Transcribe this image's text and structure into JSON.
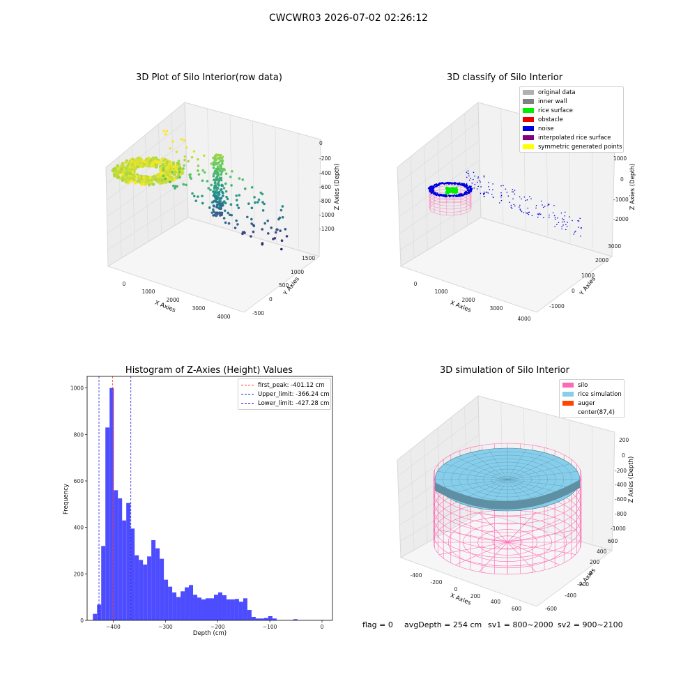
{
  "suptitle": "CWCWR03 2026-07-02 02:26:12",
  "status": {
    "flag": "flag = 0",
    "avg_depth": "avgDepth = 254 cm",
    "sv1": "sv1 = 800~2000",
    "sv2": "sv2 = 900~2100"
  },
  "chart_data": [
    {
      "type": "scatter",
      "title": "3D Plot of Silo Interior(row data)",
      "xlabel": "X Axies",
      "ylabel": "Y Axies",
      "zlabel": "Z Axies (Depth)",
      "x_ticks": [
        "0",
        "1000",
        "2000",
        "3000",
        "4000"
      ],
      "y_ticks": [
        "-500",
        "0",
        "500",
        "1000",
        "1500"
      ],
      "z_ticks": [
        "0",
        "-200",
        "-400",
        "-600",
        "-800",
        "-1000",
        "-1200"
      ],
      "colormap": "viridis",
      "grid": true
    },
    {
      "type": "scatter",
      "title": "3D classify of Silo Interior",
      "xlabel": "X Axies",
      "ylabel": "Y Axies",
      "zlabel": "Z Axies (Depth)",
      "x_ticks": [
        "0",
        "1000",
        "2000",
        "3000",
        "4000"
      ],
      "y_ticks": [
        "-1000",
        "0",
        "1000",
        "2000",
        "3000"
      ],
      "z_ticks": [
        "1000",
        "0",
        "-1000",
        "-2000"
      ],
      "legend_position": "top-right",
      "legend": [
        {
          "label": "original data",
          "color": "#b0b0b0"
        },
        {
          "label": "inner wall",
          "color": "#808080"
        },
        {
          "label": "rice surface",
          "color": "#00ee00"
        },
        {
          "label": "obstacle",
          "color": "#ee0000"
        },
        {
          "label": "noise",
          "color": "#0000dd"
        },
        {
          "label": "interpolated rice surface",
          "color": "#800080"
        },
        {
          "label": "symmetric generated points",
          "color": "#ffff00"
        }
      ],
      "grid": true
    },
    {
      "type": "bar",
      "title": "Histogram of Z-Axies (Height) Values",
      "xlabel": "Depth (cm)",
      "ylabel": "Frequency",
      "xlim": [
        -450,
        20
      ],
      "ylim": [
        0,
        1050
      ],
      "x_ticks": [
        -400,
        -300,
        -200,
        -100,
        0
      ],
      "y_ticks": [
        0,
        200,
        400,
        600,
        800,
        1000
      ],
      "bin_width": 8,
      "bin_start": -439,
      "values": [
        28,
        68,
        320,
        830,
        1000,
        560,
        525,
        430,
        505,
        395,
        280,
        260,
        240,
        275,
        345,
        310,
        265,
        175,
        145,
        120,
        100,
        125,
        142,
        152,
        110,
        98,
        90,
        95,
        95,
        110,
        120,
        108,
        90,
        90,
        92,
        80,
        95,
        45,
        15,
        8,
        8,
        10,
        18,
        8,
        0,
        0,
        0,
        0,
        5
      ],
      "bar_color": "#4d4dff",
      "vlines": [
        {
          "label": "first_peak: -401.12 cm",
          "value": -401.12,
          "color": "#ff3030"
        },
        {
          "label": "Upper_limit: -366.24 cm",
          "value": -366.24,
          "color": "#2020dd"
        },
        {
          "label": "Lower_limit: -427.28 cm",
          "value": -427.28,
          "color": "#2020dd"
        }
      ],
      "legend_position": "top-right"
    },
    {
      "type": "surface",
      "title": "3D simulation of Silo Interior",
      "xlabel": "X Axies",
      "ylabel": "Y Axies",
      "zlabel": "Z Axies (Depth)",
      "x_ticks": [
        "-400",
        "-200",
        "0",
        "200",
        "400",
        "600"
      ],
      "y_ticks": [
        "-600",
        "-400",
        "-200",
        "0",
        "200",
        "400",
        "600"
      ],
      "z_ticks": [
        "200",
        "0",
        "-200",
        "-400",
        "-600",
        "-800",
        "-1000"
      ],
      "legend_position": "top-right",
      "legend": [
        {
          "label": "silo",
          "color": "#ff69b4"
        },
        {
          "label": "rice simulation",
          "color": "#87ceeb"
        },
        {
          "label": "auger",
          "color": "#ff4500"
        },
        {
          "label": "center(87,4)",
          "color": ""
        }
      ],
      "grid": true
    }
  ]
}
